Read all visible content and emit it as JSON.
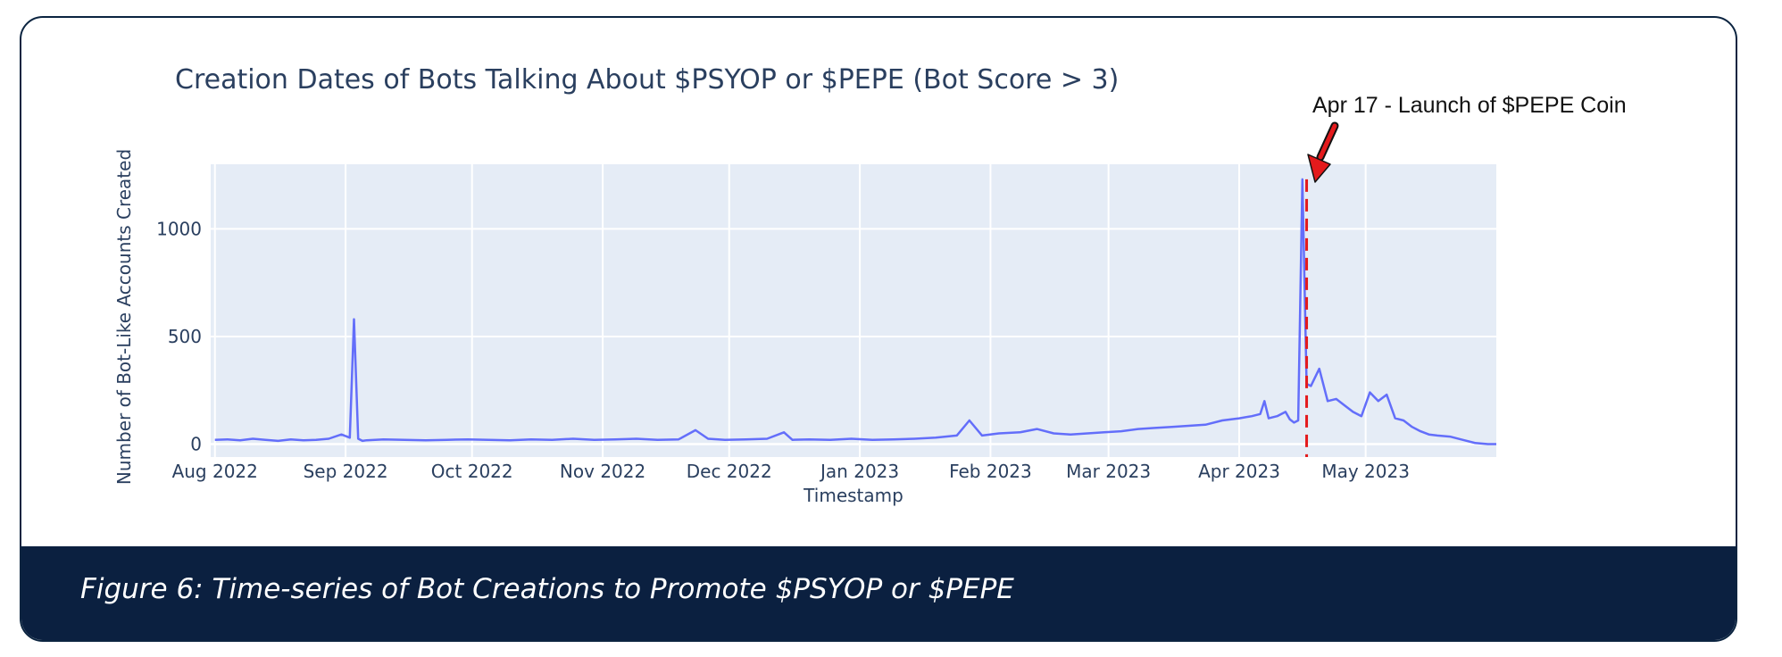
{
  "caption": "Figure 6: Time-series of Bot Creations to Promote $PSYOP or $PEPE",
  "chart_data": {
    "type": "line",
    "title": "Creation Dates of Bots Talking About $PSYOP or $PEPE (Bot Score > 3)",
    "xlabel": "Timestamp",
    "ylabel": "Number of Bot-Like Accounts Created",
    "xlim": [
      "2022-07-31",
      "2023-06-01"
    ],
    "ylim": [
      -60,
      1300
    ],
    "x_ticks": [
      {
        "label": "Aug 2022",
        "date": "2022-08-01"
      },
      {
        "label": "Sep 2022",
        "date": "2022-09-01"
      },
      {
        "label": "Oct 2022",
        "date": "2022-10-01"
      },
      {
        "label": "Nov 2022",
        "date": "2022-11-01"
      },
      {
        "label": "Dec 2022",
        "date": "2022-12-01"
      },
      {
        "label": "Jan 2023",
        "date": "2023-01-01"
      },
      {
        "label": "Feb 2023",
        "date": "2023-02-01"
      },
      {
        "label": "Mar 2023",
        "date": "2023-03-01"
      },
      {
        "label": "Apr 2023",
        "date": "2023-04-01"
      },
      {
        "label": "May 2023",
        "date": "2023-05-01"
      }
    ],
    "y_ticks": [
      0,
      500,
      1000
    ],
    "grid": true,
    "line_color": "#636efa",
    "marker_color": "#e41a1c",
    "annotation": {
      "text": "Apr 17 - Launch of $PEPE Coin",
      "date": "2023-04-17",
      "color": "#e41a1c"
    },
    "series": [
      {
        "x": [
          "2022-08-01",
          "2022-08-04",
          "2022-08-07",
          "2022-08-10",
          "2022-08-13",
          "2022-08-16",
          "2022-08-19",
          "2022-08-22",
          "2022-08-25",
          "2022-08-28",
          "2022-08-31",
          "2022-09-02",
          "2022-09-03",
          "2022-09-04",
          "2022-09-05",
          "2022-09-06",
          "2022-09-10",
          "2022-09-15",
          "2022-09-20",
          "2022-09-25",
          "2022-09-30",
          "2022-10-05",
          "2022-10-10",
          "2022-10-15",
          "2022-10-20",
          "2022-10-25",
          "2022-10-30",
          "2022-11-04",
          "2022-11-09",
          "2022-11-14",
          "2022-11-19",
          "2022-11-23",
          "2022-11-26",
          "2022-11-30",
          "2022-12-05",
          "2022-12-10",
          "2022-12-14",
          "2022-12-16",
          "2022-12-20",
          "2022-12-25",
          "2022-12-30",
          "2023-01-04",
          "2023-01-09",
          "2023-01-14",
          "2023-01-19",
          "2023-01-24",
          "2023-01-27",
          "2023-01-30",
          "2023-02-03",
          "2023-02-08",
          "2023-02-12",
          "2023-02-16",
          "2023-02-20",
          "2023-02-24",
          "2023-02-28",
          "2023-03-04",
          "2023-03-08",
          "2023-03-12",
          "2023-03-16",
          "2023-03-20",
          "2023-03-24",
          "2023-03-28",
          "2023-04-01",
          "2023-04-04",
          "2023-04-06",
          "2023-04-07",
          "2023-04-08",
          "2023-04-10",
          "2023-04-12",
          "2023-04-13",
          "2023-04-14",
          "2023-04-15",
          "2023-04-16",
          "2023-04-17",
          "2023-04-18",
          "2023-04-20",
          "2023-04-22",
          "2023-04-24",
          "2023-04-26",
          "2023-04-28",
          "2023-04-30",
          "2023-05-02",
          "2023-05-04",
          "2023-05-06",
          "2023-05-08",
          "2023-05-10",
          "2023-05-12",
          "2023-05-14",
          "2023-05-16",
          "2023-05-18",
          "2023-05-21",
          "2023-05-24",
          "2023-05-27",
          "2023-05-30",
          "2023-06-01"
        ],
        "y": [
          20,
          22,
          18,
          25,
          20,
          15,
          22,
          18,
          20,
          25,
          45,
          30,
          580,
          25,
          15,
          18,
          22,
          20,
          18,
          20,
          22,
          20,
          18,
          22,
          20,
          25,
          20,
          22,
          25,
          20,
          22,
          65,
          25,
          20,
          22,
          25,
          55,
          20,
          22,
          20,
          25,
          20,
          22,
          25,
          30,
          40,
          110,
          40,
          50,
          55,
          70,
          50,
          45,
          50,
          55,
          60,
          70,
          75,
          80,
          85,
          90,
          110,
          120,
          130,
          140,
          200,
          120,
          130,
          150,
          115,
          100,
          110,
          1230,
          280,
          270,
          350,
          200,
          210,
          180,
          150,
          130,
          240,
          200,
          230,
          120,
          110,
          80,
          60,
          45,
          40,
          35,
          20,
          5,
          0,
          0
        ]
      }
    ]
  }
}
